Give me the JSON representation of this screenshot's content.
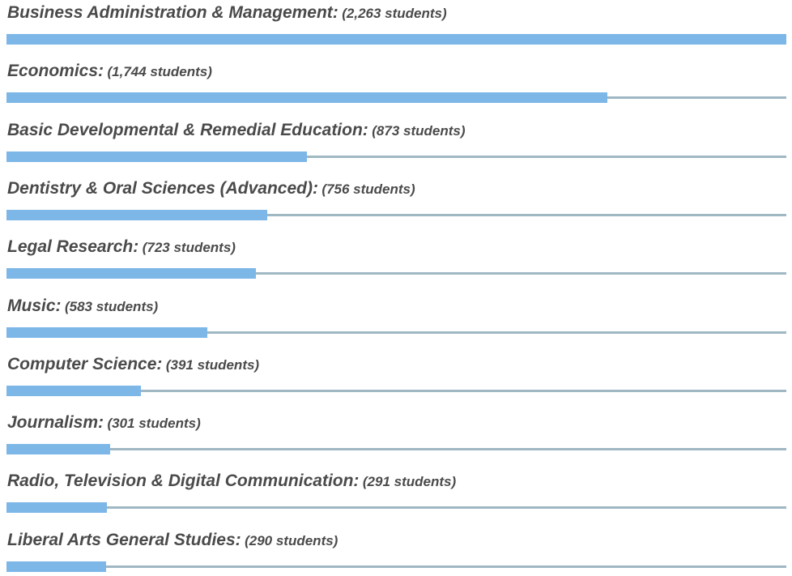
{
  "chart_data": {
    "type": "bar",
    "orientation": "horizontal",
    "unit": "students",
    "colors": {
      "bar": "#7db7e8",
      "track": "#9fb8c3",
      "text": "#4a4a4a"
    },
    "rows": [
      {
        "category": "Business Administration & Management:",
        "value": 2263,
        "value_label": "(2,263 students)"
      },
      {
        "category": "Economics:",
        "value": 1744,
        "value_label": "(1,744 students)"
      },
      {
        "category": "Basic Developmental & Remedial Education:",
        "value": 873,
        "value_label": "(873 students)"
      },
      {
        "category": "Dentistry & Oral Sciences (Advanced):",
        "value": 756,
        "value_label": "(756 students)"
      },
      {
        "category": "Legal Research:",
        "value": 723,
        "value_label": "(723 students)"
      },
      {
        "category": "Music:",
        "value": 583,
        "value_label": "(583 students)"
      },
      {
        "category": "Computer Science:",
        "value": 391,
        "value_label": "(391 students)"
      },
      {
        "category": "Journalism:",
        "value": 301,
        "value_label": "(301 students)"
      },
      {
        "category": "Radio, Television & Digital Communication:",
        "value": 291,
        "value_label": "(291 students)"
      },
      {
        "category": "Liberal Arts General Studies:",
        "value": 290,
        "value_label": "(290 students)"
      }
    ]
  }
}
